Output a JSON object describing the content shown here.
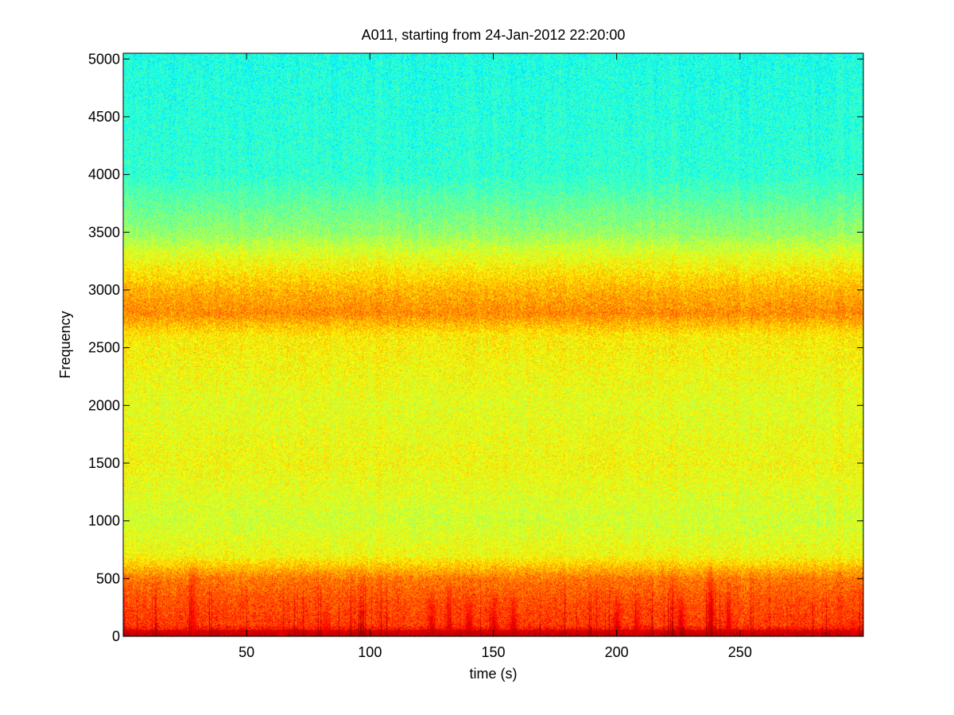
{
  "chart_data": {
    "type": "heatmap",
    "title": "A011, starting from 24-Jan-2012 22:20:00",
    "xlabel": "time (s)",
    "ylabel": "Frequency",
    "xlim": [
      0,
      300
    ],
    "ylim": [
      0,
      5050
    ],
    "x_ticks": [
      50,
      100,
      150,
      200,
      250
    ],
    "y_ticks": [
      0,
      500,
      1000,
      1500,
      2000,
      2500,
      3000,
      3500,
      4000,
      4500,
      5000
    ],
    "grid": false,
    "colormap": "jet",
    "colors": {
      "low": "#3cf0b4",
      "mid": "#aaff55",
      "high": "#ffff14",
      "peak": "#e61414"
    },
    "frequency_intensity_profile": [
      {
        "frequency": 5000,
        "level": 0.4
      },
      {
        "frequency": 4000,
        "level": 0.42
      },
      {
        "frequency": 3500,
        "level": 0.52
      },
      {
        "frequency": 3300,
        "level": 0.6
      },
      {
        "frequency": 3000,
        "level": 0.7
      },
      {
        "frequency": 2800,
        "level": 0.74
      },
      {
        "frequency": 2600,
        "level": 0.64
      },
      {
        "frequency": 2000,
        "level": 0.6
      },
      {
        "frequency": 1500,
        "level": 0.62
      },
      {
        "frequency": 1000,
        "level": 0.58
      },
      {
        "frequency": 700,
        "level": 0.62
      },
      {
        "frequency": 500,
        "level": 0.76
      },
      {
        "frequency": 300,
        "level": 0.8
      },
      {
        "frequency": 100,
        "level": 0.82
      },
      {
        "frequency": 0,
        "level": 0.95
      }
    ],
    "bursts": [
      {
        "time": 28,
        "level": 0.9,
        "max_frequency": 750
      },
      {
        "time": 64,
        "level": 0.85,
        "max_frequency": 200
      },
      {
        "time": 82,
        "level": 0.9,
        "max_frequency": 250
      },
      {
        "time": 125,
        "level": 0.95,
        "max_frequency": 450
      },
      {
        "time": 132,
        "level": 0.9,
        "max_frequency": 500
      },
      {
        "time": 140,
        "level": 0.95,
        "max_frequency": 400
      },
      {
        "time": 150,
        "level": 0.95,
        "max_frequency": 400
      },
      {
        "time": 158,
        "level": 0.95,
        "max_frequency": 450
      },
      {
        "time": 200,
        "level": 0.95,
        "max_frequency": 400
      },
      {
        "time": 208,
        "level": 0.9,
        "max_frequency": 350
      },
      {
        "time": 226,
        "level": 0.98,
        "max_frequency": 450
      },
      {
        "time": 238,
        "level": 0.98,
        "max_frequency": 700
      },
      {
        "time": 245,
        "level": 0.9,
        "max_frequency": 400
      },
      {
        "time": 296,
        "level": 0.9,
        "max_frequency": 200
      }
    ]
  }
}
